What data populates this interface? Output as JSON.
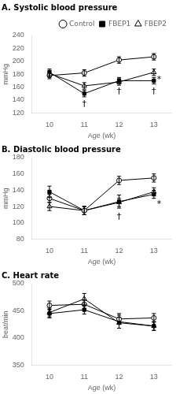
{
  "chart_data": [
    {
      "type": "line",
      "title": "A. Systolic blood pressure",
      "x_label": "Age (wk)",
      "y_label": "mmHg",
      "x": [
        10,
        11,
        12,
        13
      ],
      "xlim": [
        9.5,
        13.5
      ],
      "xticks": [
        10,
        11,
        12,
        13
      ],
      "ylim": [
        120,
        240
      ],
      "yticks": [
        120,
        140,
        160,
        180,
        200,
        220,
        240
      ],
      "grid": false,
      "legend": "upper right",
      "series": [
        {
          "name": "Control",
          "color": "black",
          "marker": "open circle",
          "values": [
            178,
            182,
            202,
            207
          ],
          "errors": [
            5,
            5,
            5,
            5
          ]
        },
        {
          "name": "FBEP1",
          "color": "black",
          "marker": "filled square",
          "values": [
            183,
            150,
            170,
            170
          ],
          "errors": [
            5,
            5,
            5,
            5
          ]
        },
        {
          "name": "FBEP2",
          "color": "black",
          "marker": "open triangle",
          "values": [
            181,
            162,
            168,
            183
          ],
          "errors": [
            5,
            5,
            5,
            5
          ]
        }
      ],
      "annotations": [
        {
          "x": 11,
          "y": 141,
          "text": "†"
        },
        {
          "x": 12,
          "y": 160,
          "text": "†"
        },
        {
          "x": 13,
          "y": 160,
          "text": "†"
        },
        {
          "x": 13.15,
          "y": 178,
          "text": "*"
        }
      ]
    },
    {
      "type": "line",
      "title": "B. Diastolic blood pressure",
      "x_label": "Age (wk)",
      "y_label": "mmHg",
      "x": [
        10,
        11,
        12,
        13
      ],
      "xlim": [
        9.5,
        13.5
      ],
      "xticks": [
        10,
        11,
        12,
        13
      ],
      "ylim": [
        80,
        180
      ],
      "yticks": [
        80,
        100,
        120,
        140,
        160,
        180
      ],
      "grid": false,
      "series": [
        {
          "name": "Control",
          "color": "black",
          "marker": "open circle",
          "values": [
            130,
            115,
            152,
            155
          ],
          "errors": [
            5,
            5,
            5,
            5
          ]
        },
        {
          "name": "FBEP1",
          "color": "black",
          "marker": "filled square",
          "values": [
            138,
            115,
            126,
            135
          ],
          "errors": [
            7,
            5,
            8,
            5
          ]
        },
        {
          "name": "FBEP2",
          "color": "black",
          "marker": "open triangle",
          "values": [
            120,
            115,
            125,
            138
          ],
          "errors": [
            5,
            5,
            5,
            5
          ]
        }
      ],
      "annotations": [
        {
          "x": 12,
          "y": 113,
          "text": "†"
        },
        {
          "x": 13.15,
          "y": 128,
          "text": "*"
        }
      ]
    },
    {
      "type": "line",
      "title": "C. Heart rate",
      "x_label": "Age (wk)",
      "y_label": "beat/min",
      "x": [
        10,
        11,
        12,
        13
      ],
      "xlim": [
        9.5,
        13.5
      ],
      "xticks": [
        10,
        11,
        12,
        13
      ],
      "ylim": [
        350,
        500
      ],
      "yticks": [
        350,
        400,
        450,
        500
      ],
      "grid": false,
      "series": [
        {
          "name": "Control",
          "color": "black",
          "marker": "open circle",
          "values": [
            460,
            462,
            435,
            437
          ],
          "errors": [
            8,
            8,
            10,
            8
          ]
        },
        {
          "name": "FBEP1",
          "color": "black",
          "marker": "filled square",
          "values": [
            445,
            452,
            430,
            422
          ],
          "errors": [
            8,
            8,
            12,
            8
          ]
        },
        {
          "name": "FBEP2",
          "color": "black",
          "marker": "open triangle",
          "values": [
            447,
            472,
            428,
            422
          ],
          "errors": [
            8,
            10,
            10,
            8
          ]
        }
      ]
    }
  ]
}
